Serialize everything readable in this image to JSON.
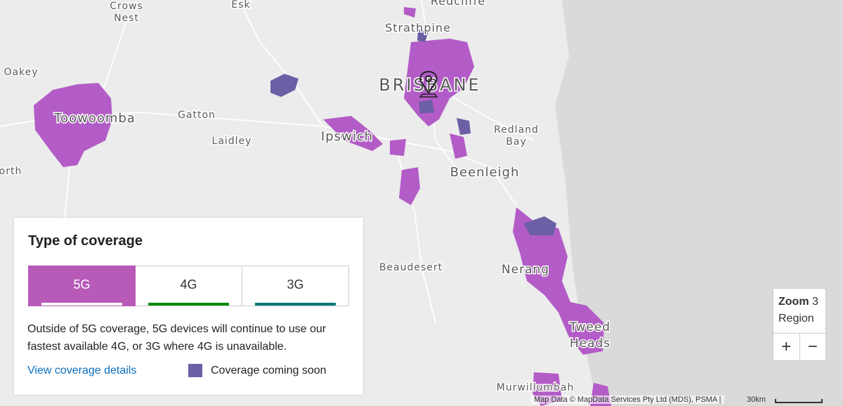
{
  "map": {
    "labels": [
      {
        "text": "Crows"
      },
      {
        "text": "Nest"
      },
      {
        "text": "Esk"
      },
      {
        "text": "Redcliffe"
      },
      {
        "text": "Strathpine"
      },
      {
        "text": "Oakey"
      },
      {
        "text": "BRISBANE"
      },
      {
        "text": "Toowoomba"
      },
      {
        "text": "Gatton"
      },
      {
        "text": "Laidley"
      },
      {
        "text": "Ipswich"
      },
      {
        "text": "Redland"
      },
      {
        "text": "Bay"
      },
      {
        "text": "Beenleigh"
      },
      {
        "text": "orth"
      },
      {
        "text": "Beaudesert"
      },
      {
        "text": "Nerang"
      },
      {
        "text": "Tweed"
      },
      {
        "text": "Heads"
      },
      {
        "text": "Murwillumbah"
      }
    ]
  },
  "panel": {
    "title": "Type of coverage",
    "tabs": [
      "5G",
      "4G",
      "3G"
    ],
    "description": "Outside of 5G coverage, 5G devices will continue to use our fastest available 4G, or 3G where 4G is unavailable.",
    "link": "View coverage details",
    "legend": "Coverage coming soon"
  },
  "zoom": {
    "label": "Zoom",
    "level": "3",
    "name": "Region",
    "buttons": [
      "+",
      "−"
    ]
  },
  "attribution": "Map Data © MapData Services Pty Ltd (MDS), PSMA  |",
  "scale": "30km"
}
